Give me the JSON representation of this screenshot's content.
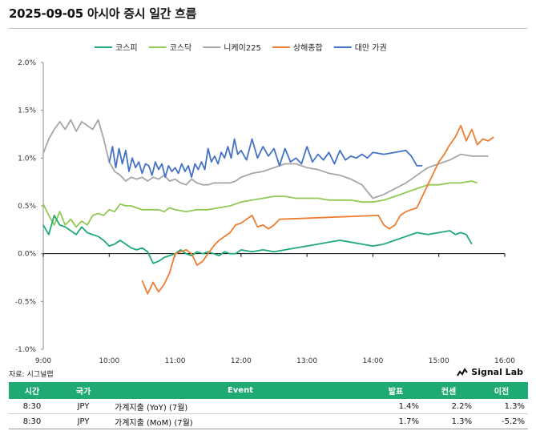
{
  "page": {
    "title": "2025-09-05 아시아 증시 일간 흐름"
  },
  "colors": {
    "kospi": "#1faa74",
    "kosdaq": "#92c954",
    "nikkei": "#a6a6a6",
    "shanghai": "#ef7d31",
    "taiwan": "#4472c4",
    "header_bg": "#1faa74"
  },
  "chart_data": {
    "type": "line",
    "title": "",
    "xlabel": "",
    "ylabel": "",
    "x_ticks": [
      "9:00",
      "10:00",
      "11:00",
      "12:00",
      "13:00",
      "14:00",
      "15:00",
      "16:00"
    ],
    "y_ticks": [
      "2.0%",
      "1.5%",
      "1.0%",
      "0.5%",
      "0.0%",
      "-0.5%",
      "-1.0%"
    ],
    "ylim": [
      -1.0,
      2.0
    ],
    "xlim": [
      "9:00",
      "16:00"
    ],
    "legend_position": "top",
    "series": [
      {
        "name": "코스피",
        "color": "#1faa74",
        "points": [
          [
            "9:00",
            0.3
          ],
          [
            "9:05",
            0.2
          ],
          [
            "9:10",
            0.4
          ],
          [
            "9:15",
            0.3
          ],
          [
            "9:20",
            0.28
          ],
          [
            "9:25",
            0.24
          ],
          [
            "9:30",
            0.2
          ],
          [
            "9:35",
            0.28
          ],
          [
            "9:40",
            0.22
          ],
          [
            "9:45",
            0.2
          ],
          [
            "9:50",
            0.18
          ],
          [
            "9:55",
            0.14
          ],
          [
            "10:00",
            0.08
          ],
          [
            "10:05",
            0.1
          ],
          [
            "10:10",
            0.14
          ],
          [
            "10:15",
            0.1
          ],
          [
            "10:20",
            0.06
          ],
          [
            "10:25",
            0.04
          ],
          [
            "10:30",
            0.06
          ],
          [
            "10:35",
            0.02
          ],
          [
            "10:40",
            -0.1
          ],
          [
            "10:45",
            -0.08
          ],
          [
            "10:50",
            -0.04
          ],
          [
            "10:55",
            -0.02
          ],
          [
            "11:00",
            0.0
          ],
          [
            "11:05",
            0.04
          ],
          [
            "11:10",
            0.0
          ],
          [
            "11:15",
            -0.02
          ],
          [
            "11:20",
            0.02
          ],
          [
            "11:25",
            0.0
          ],
          [
            "11:30",
            0.02
          ],
          [
            "11:35",
            0.0
          ],
          [
            "11:40",
            -0.02
          ],
          [
            "11:45",
            0.02
          ],
          [
            "11:50",
            0.0
          ],
          [
            "11:55",
            0.0
          ],
          [
            "12:00",
            0.04
          ],
          [
            "12:10",
            0.02
          ],
          [
            "12:20",
            0.04
          ],
          [
            "12:30",
            0.02
          ],
          [
            "12:40",
            0.04
          ],
          [
            "12:50",
            0.06
          ],
          [
            "13:00",
            0.08
          ],
          [
            "13:10",
            0.1
          ],
          [
            "13:20",
            0.12
          ],
          [
            "13:30",
            0.14
          ],
          [
            "13:40",
            0.12
          ],
          [
            "13:50",
            0.1
          ],
          [
            "14:00",
            0.08
          ],
          [
            "14:10",
            0.1
          ],
          [
            "14:20",
            0.14
          ],
          [
            "14:30",
            0.18
          ],
          [
            "14:40",
            0.22
          ],
          [
            "14:50",
            0.2
          ],
          [
            "15:00",
            0.22
          ],
          [
            "15:10",
            0.24
          ],
          [
            "15:15",
            0.2
          ],
          [
            "15:20",
            0.22
          ],
          [
            "15:25",
            0.2
          ],
          [
            "15:30",
            0.1
          ]
        ]
      },
      {
        "name": "코스닥",
        "color": "#92c954",
        "points": [
          [
            "9:00",
            0.52
          ],
          [
            "9:05",
            0.4
          ],
          [
            "9:10",
            0.3
          ],
          [
            "9:15",
            0.44
          ],
          [
            "9:20",
            0.3
          ],
          [
            "9:25",
            0.36
          ],
          [
            "9:30",
            0.28
          ],
          [
            "9:35",
            0.34
          ],
          [
            "9:40",
            0.3
          ],
          [
            "9:45",
            0.4
          ],
          [
            "9:50",
            0.42
          ],
          [
            "9:55",
            0.4
          ],
          [
            "10:00",
            0.46
          ],
          [
            "10:05",
            0.44
          ],
          [
            "10:10",
            0.52
          ],
          [
            "10:15",
            0.5
          ],
          [
            "10:20",
            0.5
          ],
          [
            "10:25",
            0.48
          ],
          [
            "10:30",
            0.46
          ],
          [
            "10:35",
            0.46
          ],
          [
            "10:40",
            0.46
          ],
          [
            "10:45",
            0.46
          ],
          [
            "10:50",
            0.44
          ],
          [
            "10:55",
            0.48
          ],
          [
            "11:00",
            0.46
          ],
          [
            "11:10",
            0.44
          ],
          [
            "11:20",
            0.46
          ],
          [
            "11:30",
            0.46
          ],
          [
            "11:40",
            0.48
          ],
          [
            "11:50",
            0.5
          ],
          [
            "12:00",
            0.54
          ],
          [
            "12:10",
            0.56
          ],
          [
            "12:20",
            0.58
          ],
          [
            "12:30",
            0.6
          ],
          [
            "12:40",
            0.6
          ],
          [
            "12:50",
            0.58
          ],
          [
            "13:00",
            0.58
          ],
          [
            "13:10",
            0.58
          ],
          [
            "13:20",
            0.56
          ],
          [
            "13:30",
            0.56
          ],
          [
            "13:40",
            0.56
          ],
          [
            "13:50",
            0.54
          ],
          [
            "14:00",
            0.54
          ],
          [
            "14:10",
            0.56
          ],
          [
            "14:20",
            0.6
          ],
          [
            "14:30",
            0.64
          ],
          [
            "14:40",
            0.68
          ],
          [
            "14:50",
            0.72
          ],
          [
            "15:00",
            0.72
          ],
          [
            "15:10",
            0.74
          ],
          [
            "15:20",
            0.74
          ],
          [
            "15:30",
            0.76
          ],
          [
            "15:35",
            0.74
          ]
        ]
      },
      {
        "name": "니케이225",
        "color": "#a6a6a6",
        "points": [
          [
            "9:00",
            1.05
          ],
          [
            "9:05",
            1.2
          ],
          [
            "9:10",
            1.3
          ],
          [
            "9:15",
            1.38
          ],
          [
            "9:20",
            1.3
          ],
          [
            "9:25",
            1.4
          ],
          [
            "9:30",
            1.28
          ],
          [
            "9:35",
            1.38
          ],
          [
            "9:40",
            1.34
          ],
          [
            "9:45",
            1.3
          ],
          [
            "9:50",
            1.4
          ],
          [
            "9:55",
            1.2
          ],
          [
            "10:00",
            0.96
          ],
          [
            "10:05",
            0.86
          ],
          [
            "10:10",
            0.82
          ],
          [
            "10:15",
            0.76
          ],
          [
            "10:20",
            0.8
          ],
          [
            "10:25",
            0.78
          ],
          [
            "10:30",
            0.8
          ],
          [
            "10:35",
            0.76
          ],
          [
            "10:40",
            0.8
          ],
          [
            "10:45",
            0.78
          ],
          [
            "10:50",
            0.82
          ],
          [
            "10:55",
            0.76
          ],
          [
            "11:00",
            0.78
          ],
          [
            "11:05",
            0.74
          ],
          [
            "11:10",
            0.72
          ],
          [
            "11:15",
            0.78
          ],
          [
            "11:20",
            0.74
          ],
          [
            "11:25",
            0.72
          ],
          [
            "11:30",
            0.72
          ],
          [
            "11:35",
            0.74
          ],
          [
            "11:40",
            0.74
          ],
          [
            "11:45",
            0.74
          ],
          [
            "11:50",
            0.74
          ],
          [
            "11:55",
            0.76
          ],
          [
            "12:00",
            0.8
          ],
          [
            "12:10",
            0.84
          ],
          [
            "12:20",
            0.86
          ],
          [
            "12:30",
            0.9
          ],
          [
            "12:40",
            0.94
          ],
          [
            "12:50",
            0.94
          ],
          [
            "13:00",
            0.9
          ],
          [
            "13:10",
            0.88
          ],
          [
            "13:20",
            0.84
          ],
          [
            "13:30",
            0.82
          ],
          [
            "13:40",
            0.78
          ],
          [
            "13:50",
            0.72
          ],
          [
            "14:00",
            0.58
          ],
          [
            "14:10",
            0.62
          ],
          [
            "14:20",
            0.68
          ],
          [
            "14:30",
            0.74
          ],
          [
            "14:40",
            0.82
          ],
          [
            "14:50",
            0.9
          ],
          [
            "15:00",
            0.94
          ],
          [
            "15:10",
            0.98
          ],
          [
            "15:20",
            1.04
          ],
          [
            "15:30",
            1.02
          ],
          [
            "15:40",
            1.02
          ],
          [
            "15:45",
            1.02
          ]
        ]
      },
      {
        "name": "상해종합",
        "color": "#ef7d31",
        "points": [
          [
            "10:30",
            -0.28
          ],
          [
            "10:35",
            -0.42
          ],
          [
            "10:40",
            -0.3
          ],
          [
            "10:45",
            -0.4
          ],
          [
            "10:50",
            -0.32
          ],
          [
            "10:55",
            -0.2
          ],
          [
            "11:00",
            0.0
          ],
          [
            "11:05",
            0.02
          ],
          [
            "11:10",
            0.04
          ],
          [
            "11:15",
            0.0
          ],
          [
            "11:20",
            -0.12
          ],
          [
            "11:25",
            -0.08
          ],
          [
            "11:30",
            0.0
          ],
          [
            "11:35",
            0.08
          ],
          [
            "11:40",
            0.14
          ],
          [
            "11:45",
            0.18
          ],
          [
            "11:50",
            0.22
          ],
          [
            "11:55",
            0.3
          ],
          [
            "12:00",
            0.32
          ],
          [
            "12:05",
            0.36
          ],
          [
            "12:10",
            0.4
          ],
          [
            "12:15",
            0.28
          ],
          [
            "12:20",
            0.3
          ],
          [
            "12:25",
            0.26
          ],
          [
            "12:30",
            0.3
          ],
          [
            "12:35",
            0.36
          ],
          [
            "14:05",
            0.4
          ],
          [
            "14:10",
            0.3
          ],
          [
            "14:15",
            0.26
          ],
          [
            "14:20",
            0.3
          ],
          [
            "14:25",
            0.4
          ],
          [
            "14:30",
            0.44
          ],
          [
            "14:35",
            0.46
          ],
          [
            "14:40",
            0.48
          ],
          [
            "14:45",
            0.6
          ],
          [
            "14:50",
            0.72
          ],
          [
            "14:55",
            0.84
          ],
          [
            "15:00",
            0.96
          ],
          [
            "15:05",
            1.04
          ],
          [
            "15:10",
            1.14
          ],
          [
            "15:15",
            1.22
          ],
          [
            "15:20",
            1.34
          ],
          [
            "15:25",
            1.18
          ],
          [
            "15:30",
            1.3
          ],
          [
            "15:35",
            1.14
          ],
          [
            "15:40",
            1.2
          ],
          [
            "15:45",
            1.18
          ],
          [
            "15:50",
            1.22
          ]
        ]
      },
      {
        "name": "대만 가권",
        "color": "#4472c4",
        "points": [
          [
            "10:00",
            0.95
          ],
          [
            "10:03",
            1.12
          ],
          [
            "10:06",
            0.9
          ],
          [
            "10:09",
            1.1
          ],
          [
            "10:12",
            0.94
          ],
          [
            "10:15",
            1.08
          ],
          [
            "10:18",
            0.86
          ],
          [
            "10:21",
            1.0
          ],
          [
            "10:24",
            0.9
          ],
          [
            "10:27",
            0.96
          ],
          [
            "10:30",
            0.84
          ],
          [
            "10:33",
            0.94
          ],
          [
            "10:36",
            0.92
          ],
          [
            "10:39",
            0.82
          ],
          [
            "10:42",
            0.96
          ],
          [
            "10:45",
            0.88
          ],
          [
            "10:48",
            0.94
          ],
          [
            "10:51",
            0.8
          ],
          [
            "10:54",
            0.92
          ],
          [
            "10:57",
            0.86
          ],
          [
            "11:00",
            0.9
          ],
          [
            "11:03",
            0.84
          ],
          [
            "11:06",
            0.94
          ],
          [
            "11:09",
            0.86
          ],
          [
            "11:12",
            0.92
          ],
          [
            "11:15",
            0.8
          ],
          [
            "11:18",
            0.94
          ],
          [
            "11:21",
            0.88
          ],
          [
            "11:24",
            0.96
          ],
          [
            "11:27",
            0.88
          ],
          [
            "11:30",
            1.1
          ],
          [
            "11:33",
            0.96
          ],
          [
            "11:36",
            1.02
          ],
          [
            "11:39",
            0.94
          ],
          [
            "11:42",
            1.06
          ],
          [
            "11:45",
            1.0
          ],
          [
            "11:48",
            1.12
          ],
          [
            "11:51",
            1.0
          ],
          [
            "11:54",
            1.2
          ],
          [
            "11:57",
            1.04
          ],
          [
            "12:00",
            1.08
          ],
          [
            "12:05",
            0.98
          ],
          [
            "12:10",
            1.2
          ],
          [
            "12:15",
            1.0
          ],
          [
            "12:20",
            1.12
          ],
          [
            "12:25",
            1.02
          ],
          [
            "12:30",
            1.1
          ],
          [
            "12:35",
            0.92
          ],
          [
            "12:40",
            1.1
          ],
          [
            "12:45",
            0.96
          ],
          [
            "12:50",
            1.0
          ],
          [
            "12:55",
            0.94
          ],
          [
            "13:00",
            1.12
          ],
          [
            "13:05",
            0.96
          ],
          [
            "13:10",
            1.04
          ],
          [
            "13:15",
            0.98
          ],
          [
            "13:20",
            1.06
          ],
          [
            "13:25",
            0.94
          ],
          [
            "13:30",
            1.08
          ],
          [
            "13:35",
            0.98
          ],
          [
            "13:40",
            1.02
          ],
          [
            "13:45",
            1.0
          ],
          [
            "13:50",
            1.04
          ],
          [
            "13:55",
            1.0
          ],
          [
            "14:00",
            1.06
          ],
          [
            "14:10",
            1.04
          ],
          [
            "14:20",
            1.06
          ],
          [
            "14:30",
            1.08
          ],
          [
            "14:35",
            1.02
          ],
          [
            "14:40",
            0.92
          ],
          [
            "14:45",
            0.92
          ]
        ]
      }
    ]
  },
  "footer": {
    "source": "자료: 시그널랩",
    "brand": "Signal Lab"
  },
  "events": {
    "headers": [
      "시간",
      "국가",
      "Event",
      "발표",
      "컨센",
      "이전"
    ],
    "rows": [
      [
        "8:30",
        "JPY",
        "가계지출 (YoY) (7월)",
        "1.4%",
        "2.2%",
        "1.3%"
      ],
      [
        "8:30",
        "JPY",
        "가계지출 (MoM) (7월)",
        "1.7%",
        "1.3%",
        "-5.2%"
      ]
    ]
  }
}
